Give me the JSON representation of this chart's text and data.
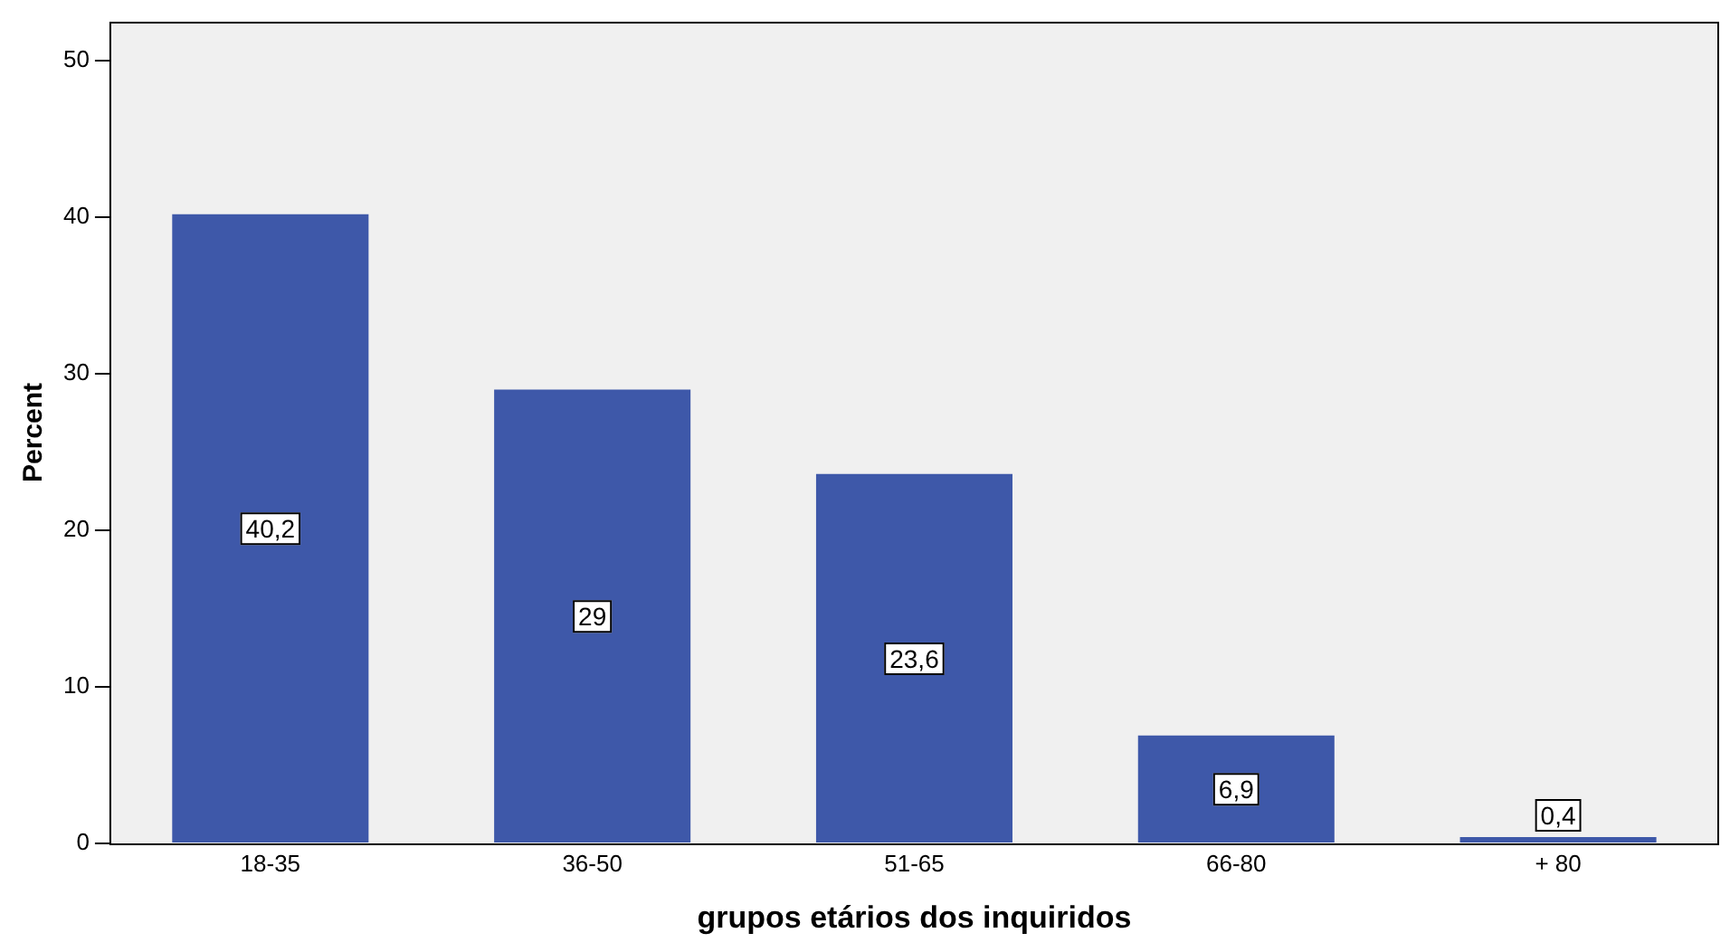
{
  "chart_data": {
    "type": "bar",
    "xlabel": "grupos etários dos inquiridos",
    "ylabel": "Percent",
    "categories": [
      "18-35",
      "36-50",
      "51-65",
      "66-80",
      "+ 80"
    ],
    "values": [
      40.2,
      29,
      23.6,
      6.9,
      0.4
    ],
    "value_labels": [
      "40,2",
      "29",
      "23,6",
      "6,9",
      "0,4"
    ],
    "color": "#3e58a9",
    "ylim": [
      0,
      52.5
    ],
    "yticks": [
      0,
      10,
      20,
      30,
      40,
      50
    ],
    "grid": false,
    "legend": false
  }
}
